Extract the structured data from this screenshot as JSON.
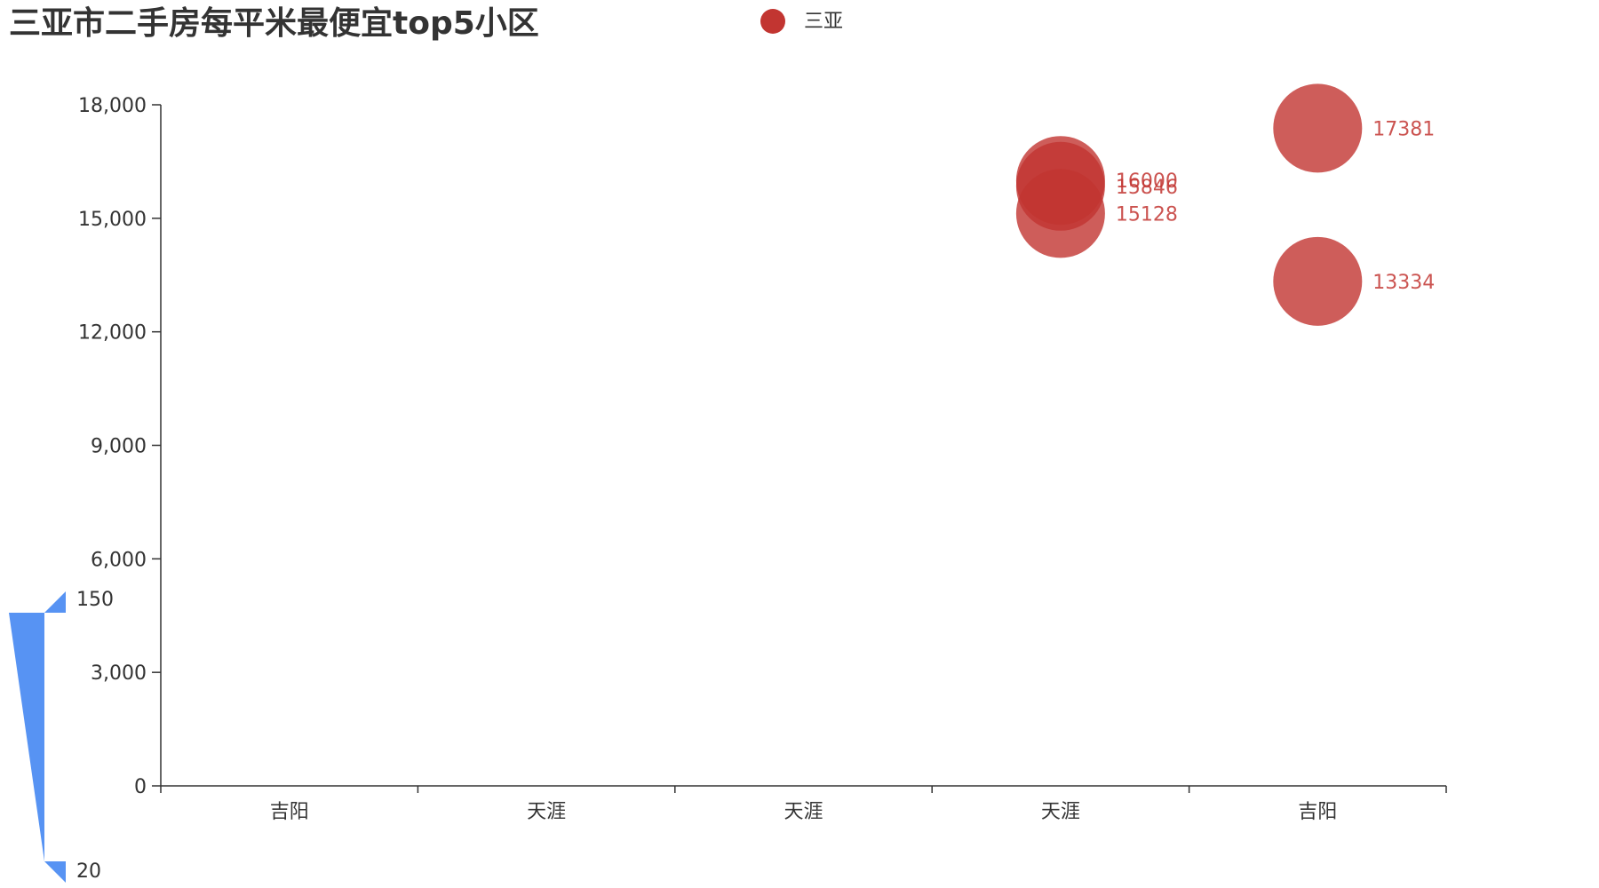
{
  "chart_data": {
    "type": "scatter",
    "title": "三亚市二手房每平米最便宜top5小区",
    "legend": {
      "items": [
        {
          "name": "三亚",
          "color": "#c23531"
        }
      ],
      "position": "top-center"
    },
    "categories": [
      "吉阳",
      "天涯",
      "天涯",
      "天涯",
      "吉阳"
    ],
    "series": [
      {
        "name": "三亚",
        "color": "#c23531",
        "points": [
          {
            "category_index": 3,
            "value": 16000
          },
          {
            "category_index": 3,
            "value": 15846
          },
          {
            "category_index": 3,
            "value": 15128
          },
          {
            "category_index": 4,
            "value": 17381
          },
          {
            "category_index": 4,
            "value": 13334
          }
        ]
      }
    ],
    "ylim": [
      0,
      18000
    ],
    "y_ticks": [
      0,
      3000,
      6000,
      9000,
      12000,
      15000,
      18000
    ],
    "grid": false,
    "visual_map": {
      "max": 150,
      "min": 20,
      "max_label": "150",
      "min_label": "20",
      "color": "#5793f3"
    }
  }
}
